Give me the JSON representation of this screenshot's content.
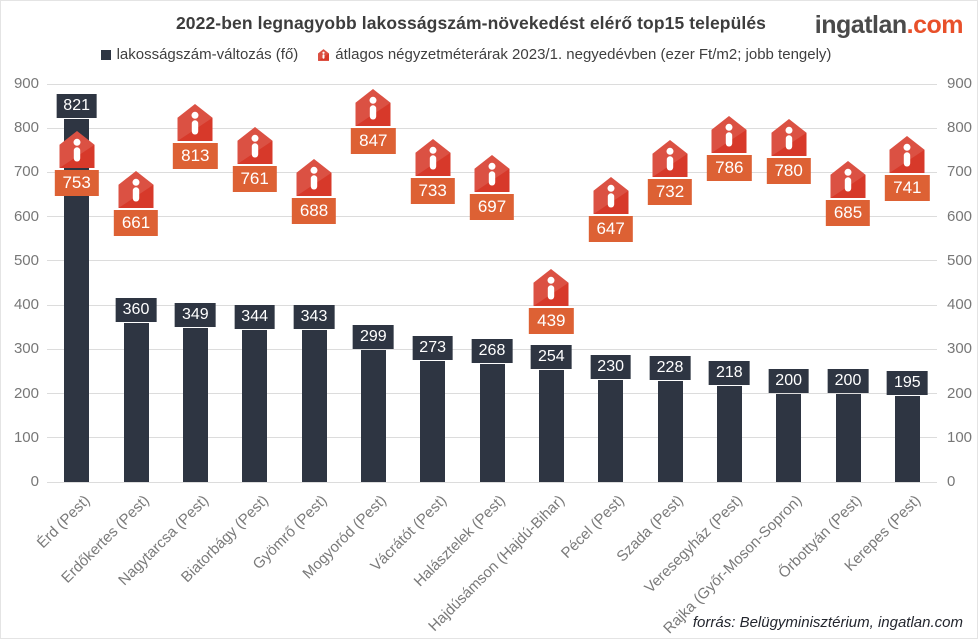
{
  "title": "2022-ben legnagyobb lakosságszám-növekedést elérő top15 település",
  "logo": {
    "name": "ingatlan",
    "tld": ".com"
  },
  "legend": [
    {
      "label": "lakosságszám-változás (fő)",
      "icon": "bar-swatch"
    },
    {
      "label": "átlagos négyzetméterárak 2023/1. negyedévben (ezer Ft/m2; jobb tengely)",
      "icon": "house"
    }
  ],
  "footer": "forrás: Belügyminisztérium, ingatlan.com",
  "colors": {
    "bar": "#2e3542",
    "bar_label_bg": "#2e3542",
    "house_red": "#d7392a",
    "house_label_bg": "#dd6134",
    "grid": "#dcdcdc",
    "axis_text": "#777777"
  },
  "chart_data": {
    "type": "bar",
    "title": "2022-ben legnagyobb lakosságszám-növekedést elérő top15 település",
    "categories": [
      "Érd (Pest)",
      "Erdőkertes (Pest)",
      "Nagytarcsa (Pest)",
      "Biatorbágy (Pest)",
      "Gyömrő (Pest)",
      "Mogyoród (Pest)",
      "Vácrátót (Pest)",
      "Halásztelek (Pest)",
      "Hajdúsámson (Hajdú-Bihar)",
      "Pécel (Pest)",
      "Szada (Pest)",
      "Veresegyház (Pest)",
      "Rajka (Győr-Moson-Sopron)",
      "Őrbottyán (Pest)",
      "Kerepes (Pest)"
    ],
    "series": [
      {
        "name": "lakosságszám-változás (fő)",
        "type": "bar",
        "axis": "left",
        "values": [
          821,
          360,
          349,
          344,
          343,
          299,
          273,
          268,
          254,
          230,
          228,
          218,
          200,
          200,
          195
        ]
      },
      {
        "name": "átlagos négyzetméterárak 2023/1. negyedévben (ezer Ft/m2; jobb tengely)",
        "type": "house-marker",
        "axis": "right",
        "values": [
          753,
          661,
          813,
          761,
          688,
          847,
          733,
          697,
          439,
          647,
          732,
          786,
          780,
          685,
          741
        ]
      }
    ],
    "ylim": [
      0,
      900
    ],
    "yticks": [
      0,
      100,
      200,
      300,
      400,
      500,
      600,
      700,
      800,
      900
    ],
    "right_ylim": [
      0,
      900
    ],
    "right_yticks": [
      0,
      100,
      200,
      300,
      400,
      500,
      600,
      700,
      800,
      900
    ],
    "grid": true,
    "legend_position": "top"
  }
}
